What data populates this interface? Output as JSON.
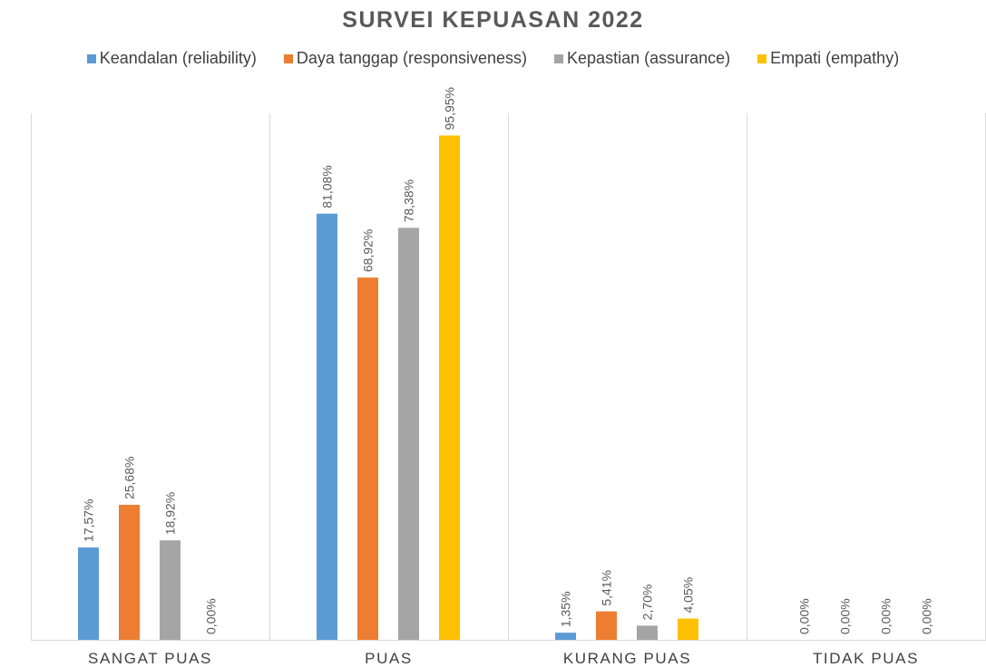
{
  "chart_data": {
    "type": "bar",
    "title": "SURVEI KEPUASAN 2022",
    "xlabel": "",
    "ylabel": "",
    "categories": [
      "SANGAT PUAS",
      "PUAS",
      "KURANG PUAS",
      "TIDAK PUAS"
    ],
    "series": [
      {
        "name": "Keandalan (reliability)",
        "color": "#5B9BD5",
        "values": [
          17.57,
          81.08,
          1.35,
          0.0
        ],
        "labels": [
          "17,57%",
          "81,08%",
          "1,35%",
          "0,00%"
        ]
      },
      {
        "name": "Daya tanggap (responsiveness)",
        "color": "#ED7D31",
        "values": [
          25.68,
          68.92,
          5.41,
          0.0
        ],
        "labels": [
          "25,68%",
          "68,92%",
          "5,41%",
          "0,00%"
        ]
      },
      {
        "name": "Kepastian (assurance)",
        "color": "#A5A5A5",
        "values": [
          18.92,
          78.38,
          2.7,
          0.0
        ],
        "labels": [
          "18,92%",
          "78,38%",
          "2,70%",
          "0,00%"
        ]
      },
      {
        "name": "Empati (empathy)",
        "color": "#FFC000",
        "values": [
          0.0,
          95.95,
          4.05,
          0.0
        ],
        "labels": [
          "0,00%",
          "95,95%",
          "4,05%",
          "0,00%"
        ]
      }
    ],
    "ylim": [
      0,
      100
    ],
    "grid": false,
    "legend": "top",
    "data_labels": "rotated-vertical"
  }
}
